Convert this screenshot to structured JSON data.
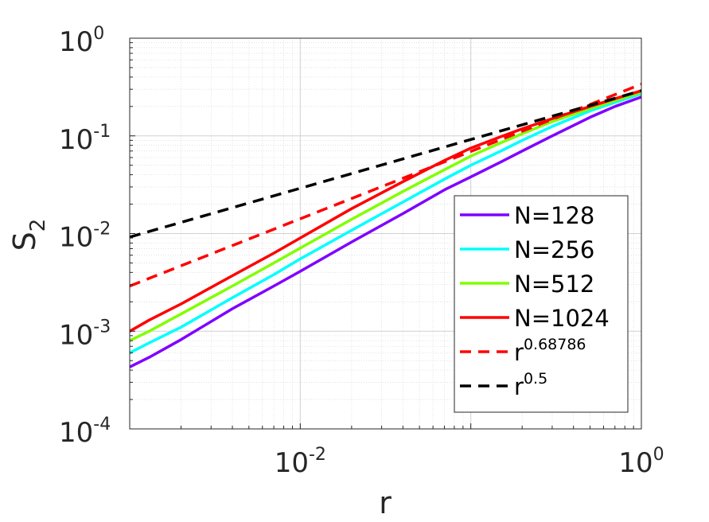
{
  "chart_data": {
    "type": "line",
    "xlabel": "r",
    "ylabel": "S",
    "ylabel_subscript": "2",
    "x_scale": "log",
    "y_scale": "log",
    "xlim": [
      0.001,
      1
    ],
    "ylim": [
      0.0001,
      1
    ],
    "x_ticks": [
      {
        "value": 0.01,
        "base": "10",
        "exp": "-2"
      },
      {
        "value": 1,
        "base": "10",
        "exp": "0"
      }
    ],
    "y_ticks": [
      {
        "value": 0.0001,
        "base": "10",
        "exp": "-4"
      },
      {
        "value": 0.001,
        "base": "10",
        "exp": "-3"
      },
      {
        "value": 0.01,
        "base": "10",
        "exp": "-2"
      },
      {
        "value": 0.1,
        "base": "10",
        "exp": "-1"
      },
      {
        "value": 1,
        "base": "10",
        "exp": "0"
      }
    ],
    "grid": true,
    "minor_grid": true,
    "legend_position": "lower-right",
    "series": [
      {
        "name": "N=128",
        "color": "#7f00ff",
        "style": "solid",
        "x": [
          0.001,
          0.0013,
          0.002,
          0.004,
          0.007,
          0.01,
          0.02,
          0.04,
          0.07,
          0.1,
          0.15,
          0.2,
          0.3,
          0.5,
          0.7,
          1.0
        ],
        "y": [
          0.00043,
          0.00054,
          0.00082,
          0.0017,
          0.0029,
          0.0041,
          0.0082,
          0.016,
          0.028,
          0.038,
          0.054,
          0.07,
          0.1,
          0.155,
          0.2,
          0.25
        ]
      },
      {
        "name": "N=256",
        "color": "#00ffff",
        "style": "solid",
        "x": [
          0.001,
          0.0013,
          0.002,
          0.004,
          0.007,
          0.01,
          0.02,
          0.04,
          0.07,
          0.1,
          0.15,
          0.2,
          0.3,
          0.5,
          0.7,
          1.0
        ],
        "y": [
          0.0006,
          0.00076,
          0.0011,
          0.0022,
          0.0038,
          0.0055,
          0.0108,
          0.021,
          0.036,
          0.05,
          0.07,
          0.09,
          0.125,
          0.18,
          0.22,
          0.27
        ]
      },
      {
        "name": "N=512",
        "color": "#80ff00",
        "style": "solid",
        "x": [
          0.001,
          0.0013,
          0.002,
          0.004,
          0.007,
          0.01,
          0.02,
          0.04,
          0.07,
          0.1,
          0.15,
          0.2,
          0.3,
          0.5,
          0.7,
          1.0
        ],
        "y": [
          0.0008,
          0.001,
          0.0015,
          0.0029,
          0.005,
          0.0071,
          0.014,
          0.027,
          0.045,
          0.062,
          0.085,
          0.105,
          0.14,
          0.19,
          0.23,
          0.28
        ]
      },
      {
        "name": "N=1024",
        "color": "#ff0000",
        "style": "solid",
        "x": [
          0.001,
          0.0013,
          0.002,
          0.004,
          0.007,
          0.01,
          0.02,
          0.04,
          0.07,
          0.1,
          0.15,
          0.2,
          0.3,
          0.5,
          0.7,
          1.0
        ],
        "y": [
          0.001,
          0.0013,
          0.0019,
          0.0037,
          0.0063,
          0.009,
          0.018,
          0.034,
          0.056,
          0.075,
          0.098,
          0.118,
          0.15,
          0.2,
          0.24,
          0.29
        ]
      },
      {
        "name": "r",
        "name_exp": "0.68786",
        "color": "#ff0000",
        "style": "dashed",
        "x": [
          0.001,
          1.0
        ],
        "y": [
          0.0029,
          0.338
        ]
      },
      {
        "name": "r",
        "name_exp": "0.5",
        "color": "#000000",
        "style": "dashed",
        "x": [
          0.001,
          1.0
        ],
        "y": [
          0.0092,
          0.29
        ]
      }
    ]
  }
}
